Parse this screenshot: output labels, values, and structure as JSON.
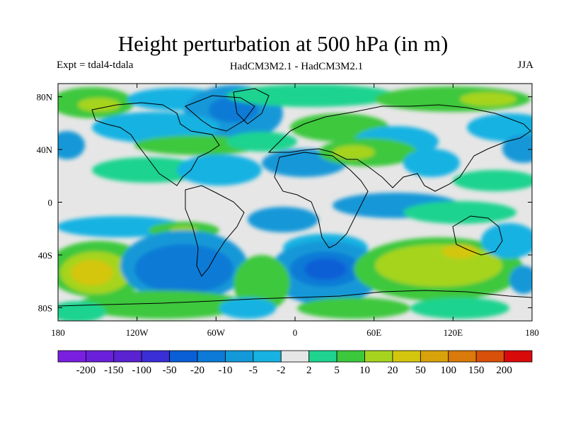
{
  "title": "Height perturbation at 500 hPa (in m)",
  "subtitle_left": "Expt = tdal4-tdala",
  "subtitle_center": "HadCM3M2.1 - HadCM3M2.1",
  "subtitle_right": "JJA",
  "map": {
    "x_ticks": [
      {
        "lon": -180,
        "label": "180"
      },
      {
        "lon": -120,
        "label": "120W"
      },
      {
        "lon": -60,
        "label": "60W"
      },
      {
        "lon": 0,
        "label": "0"
      },
      {
        "lon": 60,
        "label": "60E"
      },
      {
        "lon": 120,
        "label": "120E"
      },
      {
        "lon": 180,
        "label": "180"
      }
    ],
    "y_ticks": [
      {
        "lat": 80,
        "label": "80N"
      },
      {
        "lat": 40,
        "label": "40N"
      },
      {
        "lat": 0,
        "label": "0"
      },
      {
        "lat": -40,
        "label": "40S"
      },
      {
        "lat": -80,
        "label": "80S"
      }
    ],
    "lon_range": [
      -180,
      180
    ],
    "lat_range": [
      -90,
      90
    ]
  },
  "colorbar": {
    "colors": [
      "#7a1fe0",
      "#6a20d8",
      "#5a22d0",
      "#3a2ed6",
      "#0a5ed6",
      "#0c7ad6",
      "#1398d8",
      "#17b2e2",
      "#e6e6e6",
      "#1fd38f",
      "#3cc83c",
      "#a6d41e",
      "#d4c60e",
      "#d8a20a",
      "#d97a0a",
      "#d8500a",
      "#d80a0a"
    ],
    "labels": [
      "-200",
      "-150",
      "-100",
      "-50",
      "-20",
      "-10",
      "-5",
      "-2",
      "2",
      "5",
      "10",
      "20",
      "50",
      "100",
      "150",
      "200"
    ]
  }
}
